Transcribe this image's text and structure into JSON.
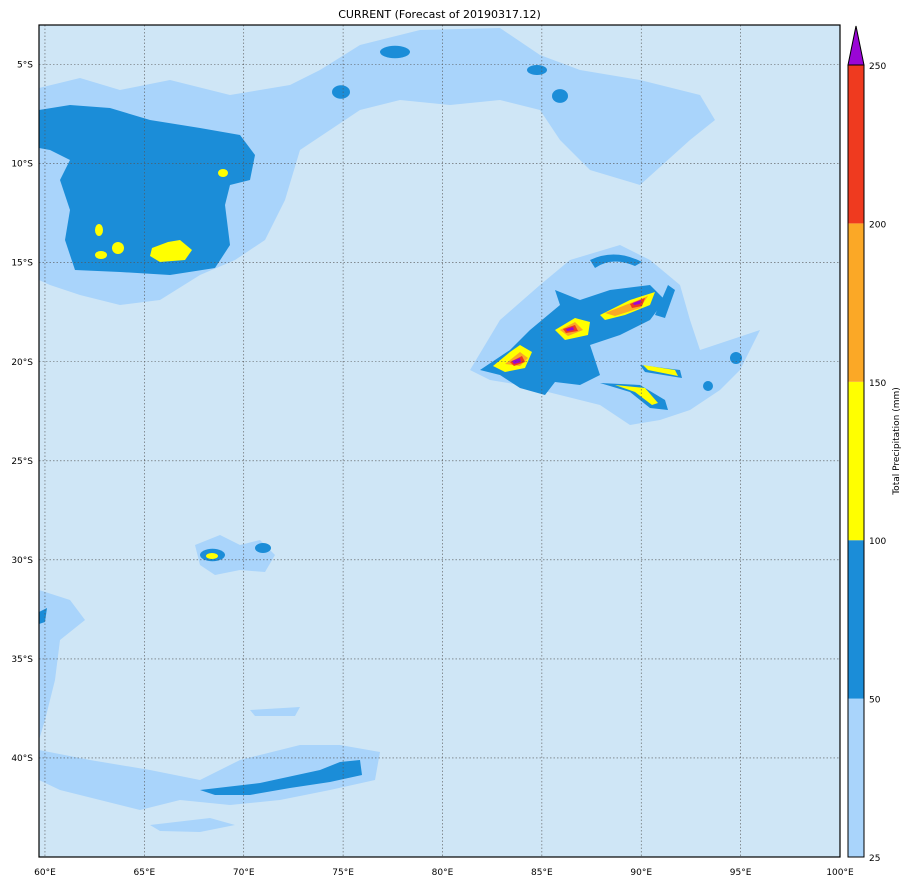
{
  "title": "CURRENT (Forecast of 20190317.12)",
  "map": {
    "lon_range": [
      59.7,
      100
    ],
    "lat_range": [
      -45,
      -3
    ],
    "lon_ticks": [
      60,
      65,
      70,
      75,
      80,
      85,
      90,
      95,
      100
    ],
    "lon_labels": [
      "60°E",
      "65°E",
      "70°E",
      "75°E",
      "80°E",
      "85°E",
      "90°E",
      "95°E",
      "100°E"
    ],
    "lat_ticks": [
      -5,
      -10,
      -15,
      -20,
      -25,
      -30,
      -35,
      -40
    ],
    "lat_labels": [
      "5°S",
      "10°S",
      "15°S",
      "20°S",
      "25°S",
      "30°S",
      "35°S",
      "40°S"
    ],
    "grid": true,
    "background_color": "#cfe6f6"
  },
  "colorbar": {
    "label": "Total Precipitation (mm)",
    "levels": [
      25,
      50,
      100,
      150,
      200,
      250
    ],
    "level_labels": [
      "25",
      "50",
      "100",
      "150",
      "200",
      "250"
    ],
    "colors": [
      "#a9d4fb",
      "#1b8dd8",
      "#ffff00",
      "#fba826",
      "#ef3a1f"
    ],
    "over_color": "#9a06d6",
    "extend": "max"
  }
}
